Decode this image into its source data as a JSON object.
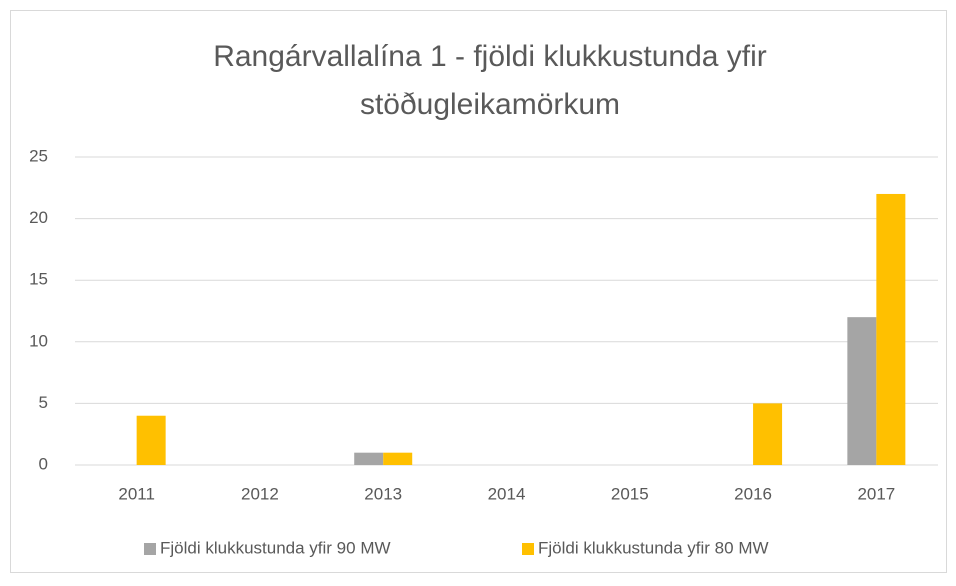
{
  "chart_data": {
    "type": "bar",
    "title": "Rangárvallalína 1 - fjöldi klukkustunda yfir stöðugleikamörkum",
    "categories": [
      "2011",
      "2012",
      "2013",
      "2014",
      "2015",
      "2016",
      "2017"
    ],
    "series": [
      {
        "name": "Fjöldi klukkustunda yfir 90 MW",
        "color": "#a5a5a5",
        "values": [
          0,
          0,
          1,
          0,
          0,
          0,
          12
        ]
      },
      {
        "name": "Fjöldi klukkustunda yfir 80 MW",
        "color": "#ffc000",
        "values": [
          4,
          0,
          1,
          0,
          0,
          5,
          22
        ]
      }
    ],
    "ylim": [
      0,
      25
    ],
    "yticks": [
      0,
      5,
      10,
      15,
      20,
      25
    ],
    "grid": true,
    "legend": "bottom"
  }
}
